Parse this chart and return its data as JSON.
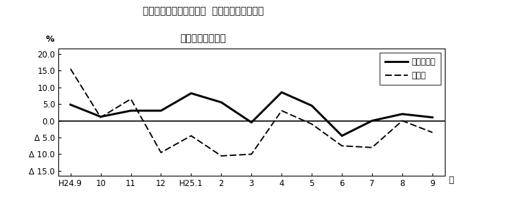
{
  "title_line1": "第２図　所定外労働時間  対前年同月比の推移",
  "title_line2": "（規模５人以上）",
  "xlabel": "月",
  "ylabel": "%",
  "xtick_labels": [
    "H24.9",
    "10",
    "11",
    "12",
    "H25.1",
    "2",
    "3",
    "4",
    "5",
    "6",
    "7",
    "8",
    "9"
  ],
  "solid_values": [
    4.8,
    1.2,
    3.0,
    3.0,
    8.2,
    5.5,
    -0.5,
    8.5,
    4.5,
    -4.5,
    0.0,
    2.0,
    1.0
  ],
  "dashed_values": [
    15.5,
    1.0,
    6.5,
    -9.5,
    -4.5,
    -10.5,
    -10.0,
    3.0,
    -1.0,
    -7.5,
    -8.0,
    0.0,
    -3.5
  ],
  "ylim": [
    -16.5,
    21.5
  ],
  "yticks": [
    -15.0,
    -10.0,
    -5.0,
    0.0,
    5.0,
    10.0,
    15.0,
    20.0
  ],
  "ytick_labels": [
    "Δ 15.0",
    "Δ 10.0",
    "Δ 5.0",
    "0.0",
    "5.0",
    "10.0",
    "15.0",
    "20.0"
  ],
  "legend_solid": "調査産業計",
  "legend_dashed": "製造業",
  "background_color": "#ffffff",
  "plot_bg_color": "#ffffff",
  "line_color": "#000000"
}
